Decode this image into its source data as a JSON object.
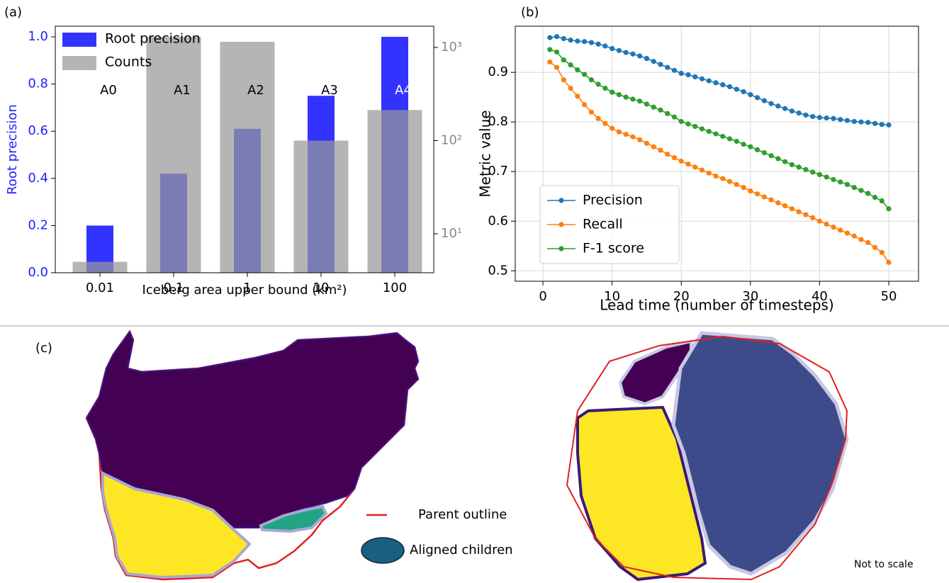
{
  "chart_data": [
    {
      "type": "bar",
      "panel": "(a)",
      "xlabel": "Iceberg area upper bound (km²)",
      "ylabel": "Root precision",
      "categories": [
        "0.01",
        "0.1",
        "1",
        "10",
        "100"
      ],
      "annotations": [
        "A0",
        "A1",
        "A2",
        "A3",
        "A4"
      ],
      "series": [
        {
          "name": "Root precision",
          "color": "#3333ff",
          "values": [
            0.2,
            0.42,
            0.61,
            0.75,
            1.0
          ]
        },
        {
          "name": "Counts",
          "color": "#999999",
          "axis": "y2",
          "values": [
            5,
            1300,
            1150,
            100,
            213
          ]
        }
      ],
      "ylim": [
        0,
        1.045
      ],
      "yticks": [
        {
          "value": 0,
          "label": "0.0"
        },
        0.2,
        0.4,
        0.6,
        0.8,
        {
          "value": 1,
          "label": "1.0"
        }
      ],
      "y2lim": [
        3.82,
        1690
      ],
      "y2log": true,
      "y2ticks": [
        {
          "value": 10,
          "label": "10¹"
        },
        {
          "value": 100,
          "label": "10²"
        },
        {
          "value": 1000,
          "label": "10³"
        }
      ],
      "legend": "upper left"
    },
    {
      "type": "line",
      "panel": "(b)",
      "xlabel": "Lead time (number of timesteps)",
      "ylabel": "Metric value",
      "x": [
        1,
        2,
        3,
        4,
        5,
        6,
        7,
        8,
        9,
        10,
        11,
        12,
        13,
        14,
        15,
        16,
        17,
        18,
        19,
        20,
        21,
        22,
        23,
        24,
        25,
        26,
        27,
        28,
        29,
        30,
        31,
        32,
        33,
        34,
        35,
        36,
        37,
        38,
        39,
        40,
        41,
        42,
        43,
        44,
        45,
        46,
        47,
        48,
        49,
        50
      ],
      "series": [
        {
          "name": "Precision",
          "color": "#1f77b4",
          "values": [
            0.97,
            0.972,
            0.968,
            0.965,
            0.963,
            0.962,
            0.96,
            0.957,
            0.953,
            0.948,
            0.944,
            0.94,
            0.937,
            0.933,
            0.928,
            0.922,
            0.916,
            0.91,
            0.904,
            0.898,
            0.895,
            0.891,
            0.887,
            0.883,
            0.879,
            0.875,
            0.871,
            0.866,
            0.861,
            0.855,
            0.849,
            0.843,
            0.837,
            0.832,
            0.827,
            0.822,
            0.818,
            0.814,
            0.811,
            0.809,
            0.808,
            0.807,
            0.805,
            0.803,
            0.801,
            0.8,
            0.799,
            0.797,
            0.795,
            0.794
          ]
        },
        {
          "name": "Recall",
          "color": "#ff7f0e",
          "values": [
            0.921,
            0.91,
            0.885,
            0.868,
            0.852,
            0.835,
            0.82,
            0.807,
            0.797,
            0.787,
            0.78,
            0.775,
            0.77,
            0.764,
            0.757,
            0.75,
            0.743,
            0.735,
            0.728,
            0.721,
            0.715,
            0.709,
            0.703,
            0.697,
            0.691,
            0.686,
            0.68,
            0.674,
            0.668,
            0.661,
            0.655,
            0.649,
            0.643,
            0.637,
            0.631,
            0.625,
            0.619,
            0.613,
            0.607,
            0.6,
            0.594,
            0.588,
            0.582,
            0.576,
            0.57,
            0.563,
            0.557,
            0.547,
            0.537,
            0.517
          ]
        },
        {
          "name": "F-1 score",
          "color": "#2ca02c",
          "values": [
            0.946,
            0.941,
            0.925,
            0.915,
            0.905,
            0.896,
            0.885,
            0.876,
            0.868,
            0.86,
            0.855,
            0.85,
            0.846,
            0.842,
            0.836,
            0.83,
            0.824,
            0.817,
            0.81,
            0.801,
            0.796,
            0.791,
            0.786,
            0.781,
            0.776,
            0.771,
            0.766,
            0.761,
            0.755,
            0.75,
            0.744,
            0.738,
            0.732,
            0.726,
            0.72,
            0.714,
            0.709,
            0.704,
            0.699,
            0.694,
            0.689,
            0.684,
            0.679,
            0.674,
            0.668,
            0.662,
            0.656,
            0.648,
            0.641,
            0.625
          ]
        }
      ],
      "xlim": [
        -4,
        54.3
      ],
      "xticks": [
        0,
        10,
        20,
        30,
        40,
        50
      ],
      "ylim": [
        0.479,
        0.993
      ],
      "yticks": [
        0.5,
        0.6,
        0.7,
        0.8,
        0.9
      ],
      "grid": true,
      "legend": "lower left"
    }
  ],
  "diagram": {
    "panel": "(c)",
    "legend": [
      "Parent outline",
      "Aligned children"
    ],
    "note": "Not to scale"
  }
}
